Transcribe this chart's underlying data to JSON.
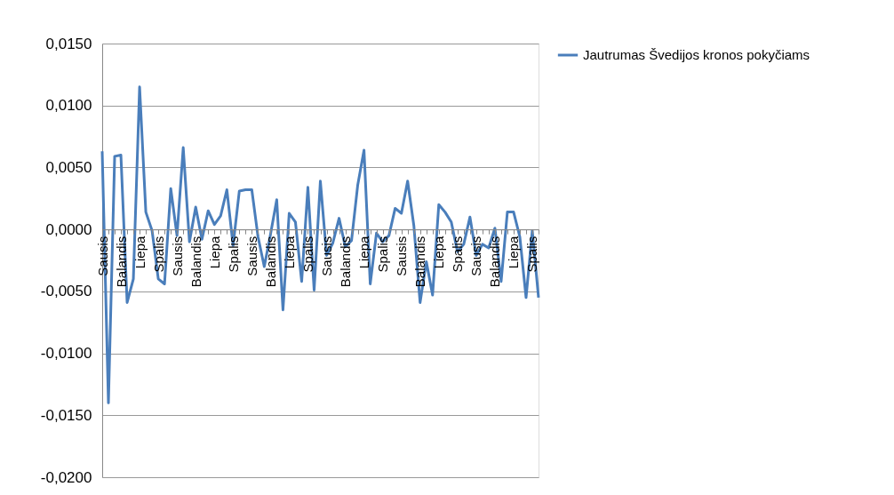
{
  "chart_data": {
    "type": "line",
    "categories": [
      "Sausis",
      null,
      null,
      "Balandis",
      null,
      null,
      "Liepa",
      null,
      null,
      "Spalis",
      null,
      null,
      "Sausis",
      null,
      null,
      "Balandis",
      null,
      null,
      "Liepa",
      null,
      null,
      "Spalis",
      null,
      null,
      "Sausis",
      null,
      null,
      "Balandis",
      null,
      null,
      "Liepa",
      null,
      null,
      "Spalis",
      null,
      null,
      "Sausis",
      null,
      null,
      "Balandis",
      null,
      null,
      "Liepa",
      null,
      null,
      "Spalis",
      null,
      null,
      "Sausis",
      null,
      null,
      "Balandis",
      null,
      null,
      "Liepa",
      null,
      null,
      "Spalis",
      null,
      null,
      "Sausis",
      null,
      null,
      "Balandis",
      null,
      null,
      "Liepa",
      null,
      null,
      "Spalis",
      null
    ],
    "series": [
      {
        "name": "Jautrumas Švedijos kronos pokyčiams",
        "color": "#4a7ebb",
        "values": [
          0.0063,
          -0.014,
          0.0059,
          0.006,
          -0.0059,
          -0.004,
          0.0115,
          0.0014,
          -0.0001,
          -0.004,
          -0.0044,
          0.0033,
          -0.0005,
          0.0066,
          -0.001,
          0.0018,
          -0.0008,
          0.0015,
          0.0004,
          0.0011,
          0.0032,
          -0.0013,
          0.0031,
          0.0032,
          0.0032,
          -0.0006,
          -0.003,
          -0.0004,
          0.0024,
          -0.0065,
          0.0013,
          0.0006,
          -0.0042,
          0.0034,
          -0.0049,
          0.0039,
          -0.0021,
          -0.0011,
          0.0009,
          -0.0014,
          -0.0009,
          0.0036,
          0.0064,
          -0.0044,
          -0.0003,
          -0.001,
          -0.0005,
          0.0017,
          0.0013,
          0.0039,
          0.0003,
          -0.0059,
          -0.0026,
          -0.0053,
          0.002,
          0.0014,
          0.0006,
          -0.0018,
          -0.0012,
          0.001,
          -0.0021,
          -0.0012,
          -0.0015,
          0.0001,
          -0.0042,
          0.0014,
          0.0014,
          -0.0006,
          -0.0055,
          -0.0001,
          -0.0055
        ]
      }
    ],
    "ylim": [
      -0.02,
      0.015
    ],
    "yticks": [
      {
        "value": -0.02,
        "label": "-0,0200"
      },
      {
        "value": -0.015,
        "label": "-0,0150"
      },
      {
        "value": -0.01,
        "label": "-0,0100"
      },
      {
        "value": -0.005,
        "label": "-0,0050"
      },
      {
        "value": 0,
        "label": "0,0000"
      },
      {
        "value": 0.005,
        "label": "0,0050"
      },
      {
        "value": 0.01,
        "label": "0,0100"
      },
      {
        "value": 0.015,
        "label": "0,0150"
      }
    ],
    "grid": "y",
    "legend": "right",
    "line_style": "solid",
    "marker": "none"
  }
}
